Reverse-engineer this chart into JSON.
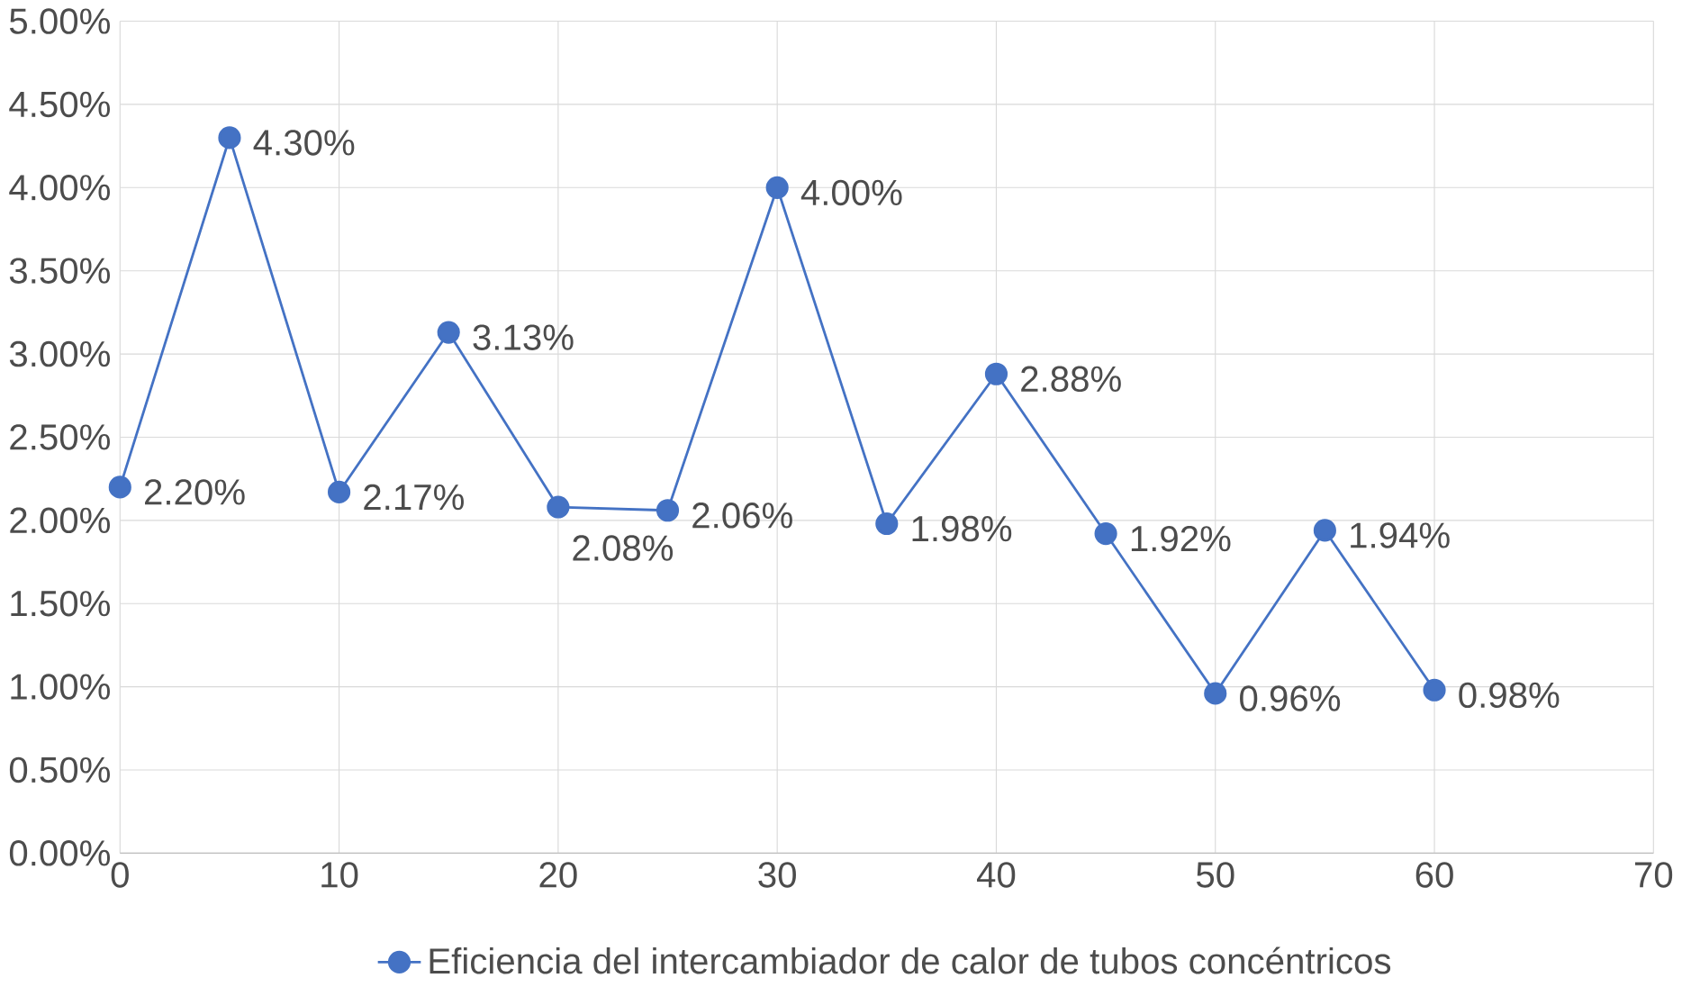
{
  "chart_data": {
    "type": "line",
    "x": [
      0,
      5,
      10,
      15,
      20,
      25,
      30,
      35,
      40,
      45,
      50,
      55,
      60
    ],
    "series": [
      {
        "name": "Eficiencia del intercambiador de calor de tubos concéntricos",
        "color": "#4472c4",
        "values": [
          2.2,
          4.3,
          2.17,
          3.13,
          2.08,
          2.06,
          4.0,
          1.98,
          2.88,
          1.92,
          0.96,
          1.94,
          0.98
        ],
        "value_labels": [
          "2.20%",
          "4.30%",
          "2.17%",
          "3.13%",
          "2.08%",
          "2.06%",
          "4.00%",
          "1.98%",
          "2.88%",
          "1.92%",
          "0.96%",
          "1.94%",
          "0.98%"
        ]
      }
    ],
    "xlim": [
      0,
      70
    ],
    "xticks": [
      0,
      10,
      20,
      30,
      40,
      50,
      60,
      70
    ],
    "ylim": [
      0,
      5
    ],
    "yticks": [
      {
        "value": 0,
        "label": "0.00%"
      },
      {
        "value": 0.5,
        "label": "0.50%"
      },
      {
        "value": 1,
        "label": "1.00%"
      },
      {
        "value": 1.5,
        "label": "1.50%"
      },
      {
        "value": 2,
        "label": "2.00%"
      },
      {
        "value": 2.5,
        "label": "2.50%"
      },
      {
        "value": 3,
        "label": "3.00%"
      },
      {
        "value": 3.5,
        "label": "3.50%"
      },
      {
        "value": 4,
        "label": "4.00%"
      },
      {
        "value": 4.5,
        "label": "4.50%"
      },
      {
        "value": 5,
        "label": "5.00%"
      }
    ],
    "grid": true,
    "legend": "bottom",
    "marker": "circle",
    "line_style": "solid"
  }
}
